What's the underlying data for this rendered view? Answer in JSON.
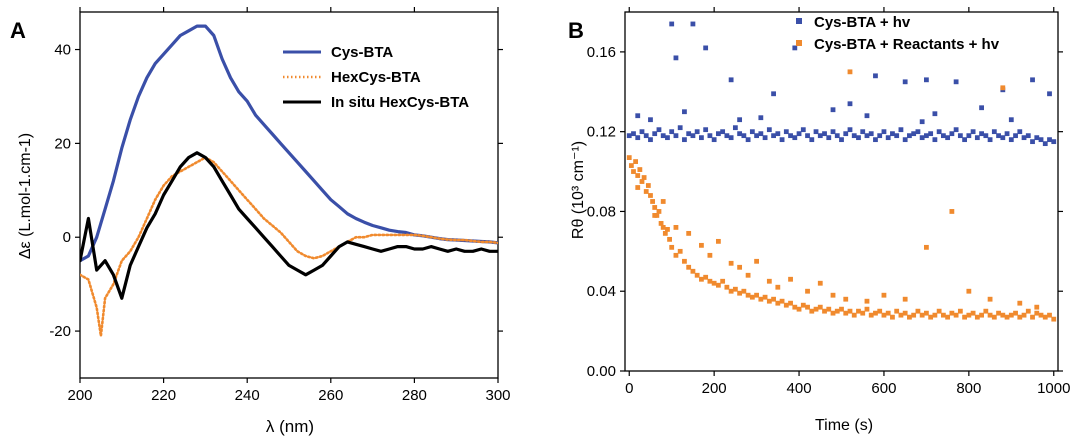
{
  "chart_data": [
    {
      "panel": "A",
      "type": "line",
      "xlabel": "λ (nm)",
      "ylabel": "Δε (L.mol-1.cm-1)",
      "xlim": [
        200,
        300
      ],
      "ylim": [
        -30,
        48
      ],
      "xticks": [
        200,
        220,
        240,
        260,
        280,
        300
      ],
      "yticks": [
        -20,
        0,
        20,
        40
      ],
      "grid": false,
      "legend_position": "top-right",
      "series": [
        {
          "name": "Cys-BTA",
          "color": "#3a4fa8",
          "style": "solid",
          "x": [
            200,
            202,
            204,
            206,
            208,
            210,
            212,
            214,
            216,
            218,
            220,
            222,
            224,
            226,
            228,
            230,
            232,
            234,
            236,
            238,
            240,
            242,
            244,
            246,
            248,
            250,
            252,
            254,
            256,
            258,
            260,
            262,
            264,
            266,
            268,
            270,
            272,
            274,
            276,
            278,
            280,
            282,
            284,
            286,
            288,
            290,
            292,
            294,
            296,
            298,
            300
          ],
          "y": [
            -5,
            -4,
            0,
            6,
            12,
            19,
            25,
            30,
            34,
            37,
            39,
            41,
            43,
            44,
            45,
            45,
            43,
            38,
            34,
            31,
            29,
            26,
            24,
            22,
            20,
            18,
            16,
            14,
            12,
            10,
            8,
            6.5,
            5,
            4,
            3.2,
            2.5,
            2,
            1.5,
            1.2,
            1,
            0.5,
            0.3,
            0,
            -0.3,
            -0.5,
            -0.6,
            -0.7,
            -0.8,
            -0.9,
            -1,
            -1.2
          ]
        },
        {
          "name": "HexCys-BTA",
          "color": "#f08a2e",
          "style": "dotted",
          "x": [
            200,
            202,
            204,
            205,
            206,
            208,
            210,
            212,
            214,
            216,
            218,
            220,
            222,
            224,
            226,
            228,
            230,
            232,
            234,
            236,
            238,
            240,
            242,
            244,
            246,
            248,
            250,
            252,
            254,
            256,
            258,
            260,
            262,
            264,
            266,
            268,
            270,
            272,
            274,
            276,
            278,
            280,
            282,
            284,
            286,
            288,
            290,
            292,
            294,
            296,
            298,
            300
          ],
          "y": [
            -8,
            -9,
            -15,
            -21,
            -13,
            -10,
            -5,
            -3,
            0,
            4,
            8,
            11,
            13,
            14,
            15,
            16,
            17,
            16,
            14,
            12,
            10,
            8,
            6,
            4,
            2.5,
            1,
            -1,
            -3,
            -4,
            -4.5,
            -4,
            -3,
            -2,
            -1,
            0,
            0,
            0.5,
            0.5,
            0.5,
            0.5,
            0.5,
            0.5,
            0.3,
            0,
            -0.3,
            -0.5,
            -0.6,
            -0.6,
            -0.8,
            -1,
            -1,
            -1.2
          ]
        },
        {
          "name": "In situ HexCys-BTA",
          "color": "#000000",
          "style": "solid",
          "x": [
            200,
            202,
            204,
            206,
            208,
            210,
            212,
            214,
            216,
            218,
            220,
            222,
            224,
            226,
            228,
            230,
            232,
            234,
            236,
            238,
            240,
            242,
            244,
            246,
            248,
            250,
            252,
            254,
            256,
            258,
            260,
            262,
            264,
            266,
            268,
            270,
            272,
            274,
            276,
            278,
            280,
            282,
            284,
            286,
            288,
            290,
            292,
            294,
            296,
            298,
            300
          ],
          "y": [
            -5,
            4,
            -7,
            -5,
            -8,
            -13,
            -6,
            -2,
            2,
            5,
            9,
            12,
            15,
            17,
            18,
            17,
            15,
            12,
            9,
            6,
            4,
            2,
            0,
            -2,
            -4,
            -6,
            -7,
            -8,
            -7,
            -6,
            -4,
            -2,
            -1,
            -1.5,
            -2,
            -2.5,
            -3,
            -2.5,
            -2,
            -2,
            -2.5,
            -2.5,
            -2,
            -2.5,
            -3,
            -2.5,
            -3,
            -3,
            -2.5,
            -3,
            -3
          ]
        }
      ]
    },
    {
      "panel": "B",
      "type": "scatter",
      "xlabel": "Time (s)",
      "ylabel": "Rθ (10³ cm⁻¹)",
      "xlim": [
        -10,
        1010
      ],
      "ylim": [
        0,
        0.18
      ],
      "xticks": [
        0,
        200,
        400,
        600,
        800,
        1000
      ],
      "yticks": [
        0.0,
        0.04,
        0.08,
        0.12,
        0.16
      ],
      "grid": false,
      "legend_position": "top-right",
      "series": [
        {
          "name": "Cys-BTA + hv",
          "color": "#3a4fa8",
          "x": [
            0,
            10,
            20,
            30,
            40,
            50,
            60,
            70,
            80,
            90,
            100,
            110,
            120,
            130,
            140,
            150,
            160,
            170,
            180,
            190,
            200,
            210,
            220,
            230,
            240,
            250,
            260,
            270,
            280,
            290,
            300,
            310,
            320,
            330,
            340,
            350,
            360,
            370,
            380,
            390,
            400,
            410,
            420,
            430,
            440,
            450,
            460,
            470,
            480,
            490,
            500,
            510,
            520,
            530,
            540,
            550,
            560,
            570,
            580,
            590,
            600,
            610,
            620,
            630,
            640,
            650,
            660,
            670,
            680,
            690,
            700,
            710,
            720,
            730,
            740,
            750,
            760,
            770,
            780,
            790,
            800,
            810,
            820,
            830,
            840,
            850,
            860,
            870,
            880,
            890,
            900,
            910,
            920,
            930,
            940,
            950,
            960,
            970,
            980,
            990,
            1000,
            20,
            50,
            100,
            110,
            150,
            180,
            240,
            340,
            390,
            520,
            580,
            650,
            700,
            770,
            830,
            880,
            950,
            990,
            130,
            260,
            310,
            480,
            560,
            690,
            720,
            900
          ],
          "y": [
            0.118,
            0.119,
            0.117,
            0.12,
            0.118,
            0.116,
            0.119,
            0.121,
            0.118,
            0.117,
            0.12,
            0.118,
            0.122,
            0.116,
            0.119,
            0.118,
            0.12,
            0.117,
            0.121,
            0.118,
            0.116,
            0.119,
            0.12,
            0.118,
            0.117,
            0.122,
            0.119,
            0.118,
            0.116,
            0.12,
            0.118,
            0.119,
            0.117,
            0.121,
            0.118,
            0.119,
            0.116,
            0.12,
            0.118,
            0.117,
            0.119,
            0.121,
            0.118,
            0.116,
            0.12,
            0.118,
            0.119,
            0.117,
            0.12,
            0.118,
            0.116,
            0.119,
            0.121,
            0.118,
            0.117,
            0.12,
            0.118,
            0.119,
            0.116,
            0.118,
            0.12,
            0.117,
            0.119,
            0.118,
            0.121,
            0.116,
            0.118,
            0.119,
            0.12,
            0.117,
            0.118,
            0.119,
            0.116,
            0.12,
            0.118,
            0.117,
            0.119,
            0.121,
            0.118,
            0.116,
            0.118,
            0.12,
            0.117,
            0.119,
            0.118,
            0.116,
            0.12,
            0.118,
            0.117,
            0.119,
            0.116,
            0.118,
            0.12,
            0.117,
            0.118,
            0.115,
            0.117,
            0.116,
            0.114,
            0.116,
            0.115,
            0.128,
            0.126,
            0.174,
            0.157,
            0.174,
            0.162,
            0.146,
            0.139,
            0.162,
            0.134,
            0.148,
            0.145,
            0.146,
            0.145,
            0.132,
            0.141,
            0.146,
            0.139,
            0.13,
            0.126,
            0.127,
            0.131,
            0.128,
            0.125,
            0.129,
            0.126
          ]
        },
        {
          "name": "Cys-BTA + Reactants + hv",
          "color": "#f08a2e",
          "x": [
            0,
            5,
            10,
            15,
            20,
            25,
            30,
            35,
            40,
            45,
            50,
            55,
            60,
            65,
            70,
            75,
            80,
            85,
            90,
            95,
            100,
            110,
            120,
            130,
            140,
            150,
            160,
            170,
            180,
            190,
            200,
            210,
            220,
            230,
            240,
            250,
            260,
            270,
            280,
            290,
            300,
            310,
            320,
            330,
            340,
            350,
            360,
            370,
            380,
            390,
            400,
            410,
            420,
            430,
            440,
            450,
            460,
            470,
            480,
            490,
            500,
            510,
            520,
            530,
            540,
            550,
            560,
            570,
            580,
            590,
            600,
            610,
            620,
            630,
            640,
            650,
            660,
            670,
            680,
            690,
            700,
            710,
            720,
            730,
            740,
            750,
            760,
            770,
            780,
            790,
            800,
            810,
            820,
            830,
            840,
            850,
            860,
            870,
            880,
            890,
            900,
            910,
            920,
            930,
            940,
            950,
            960,
            970,
            980,
            990,
            1000,
            20,
            60,
            80,
            110,
            140,
            170,
            190,
            210,
            240,
            260,
            280,
            300,
            330,
            350,
            380,
            420,
            450,
            480,
            510,
            520,
            560,
            600,
            650,
            700,
            760,
            800,
            850,
            880,
            920,
            960
          ],
          "y": [
            0.107,
            0.103,
            0.1,
            0.105,
            0.098,
            0.101,
            0.095,
            0.097,
            0.09,
            0.093,
            0.088,
            0.085,
            0.082,
            0.078,
            0.08,
            0.074,
            0.072,
            0.069,
            0.071,
            0.066,
            0.062,
            0.058,
            0.06,
            0.055,
            0.052,
            0.05,
            0.048,
            0.046,
            0.047,
            0.045,
            0.044,
            0.043,
            0.045,
            0.042,
            0.04,
            0.041,
            0.039,
            0.04,
            0.038,
            0.037,
            0.038,
            0.036,
            0.037,
            0.035,
            0.036,
            0.034,
            0.035,
            0.033,
            0.034,
            0.032,
            0.031,
            0.033,
            0.032,
            0.03,
            0.031,
            0.032,
            0.03,
            0.031,
            0.029,
            0.03,
            0.031,
            0.029,
            0.03,
            0.028,
            0.03,
            0.029,
            0.031,
            0.028,
            0.029,
            0.03,
            0.028,
            0.029,
            0.027,
            0.03,
            0.028,
            0.029,
            0.027,
            0.028,
            0.03,
            0.028,
            0.029,
            0.027,
            0.028,
            0.03,
            0.028,
            0.027,
            0.029,
            0.028,
            0.03,
            0.027,
            0.028,
            0.029,
            0.027,
            0.028,
            0.03,
            0.028,
            0.027,
            0.029,
            0.028,
            0.027,
            0.028,
            0.029,
            0.027,
            0.028,
            0.03,
            0.027,
            0.029,
            0.028,
            0.027,
            0.028,
            0.026,
            0.092,
            0.078,
            0.085,
            0.072,
            0.069,
            0.063,
            0.058,
            0.065,
            0.054,
            0.052,
            0.048,
            0.055,
            0.045,
            0.042,
            0.046,
            0.04,
            0.044,
            0.038,
            0.036,
            0.15,
            0.035,
            0.038,
            0.036,
            0.062,
            0.08,
            0.04,
            0.036,
            0.142,
            0.034,
            0.032
          ]
        }
      ]
    }
  ]
}
